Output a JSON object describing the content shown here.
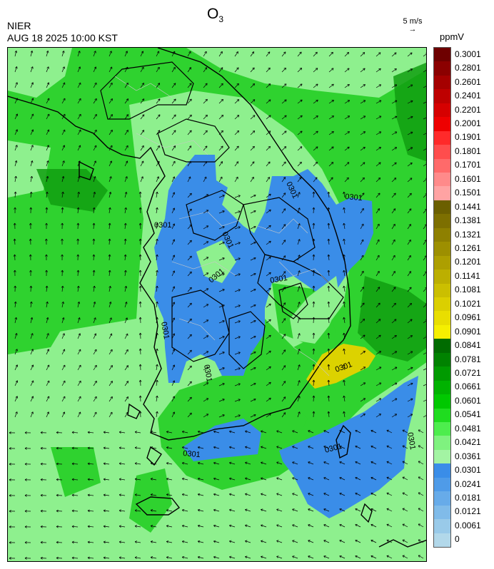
{
  "header": {
    "title_main": "O",
    "title_sub": "3",
    "agency": "NIER",
    "datetime": "AUG 18 2025 10:00 KST"
  },
  "wind_scale": {
    "label": "5 m/s",
    "arrow": "→"
  },
  "legend": {
    "unit": "ppmV",
    "levels": [
      {
        "label": "0.3001",
        "color": "#6e0000"
      },
      {
        "label": "0.2801",
        "color": "#8b0000"
      },
      {
        "label": "0.2601",
        "color": "#a50000"
      },
      {
        "label": "0.2401",
        "color": "#be0000"
      },
      {
        "label": "0.2201",
        "color": "#d60000"
      },
      {
        "label": "0.2001",
        "color": "#ee0000"
      },
      {
        "label": "0.1901",
        "color": "#ff2a2a"
      },
      {
        "label": "0.1801",
        "color": "#ff4d4d"
      },
      {
        "label": "0.1701",
        "color": "#ff6a6a"
      },
      {
        "label": "0.1601",
        "color": "#ff8a8a"
      },
      {
        "label": "0.1501",
        "color": "#ffa3a3"
      },
      {
        "label": "0.1441",
        "color": "#6b5f00"
      },
      {
        "label": "0.1381",
        "color": "#7d6f00"
      },
      {
        "label": "0.1321",
        "color": "#8e8000"
      },
      {
        "label": "0.1261",
        "color": "#9d8f00"
      },
      {
        "label": "0.1201",
        "color": "#ad9f00"
      },
      {
        "label": "0.1141",
        "color": "#bcaf00"
      },
      {
        "label": "0.1081",
        "color": "#cbbf00"
      },
      {
        "label": "0.1021",
        "color": "#dbcf00"
      },
      {
        "label": "0.0961",
        "color": "#e9de00"
      },
      {
        "label": "0.0901",
        "color": "#f5ef00"
      },
      {
        "label": "0.0841",
        "color": "#006b00"
      },
      {
        "label": "0.0781",
        "color": "#008200"
      },
      {
        "label": "0.0721",
        "color": "#009a00"
      },
      {
        "label": "0.0661",
        "color": "#00b200"
      },
      {
        "label": "0.0601",
        "color": "#00c800"
      },
      {
        "label": "0.0541",
        "color": "#1fdc1f"
      },
      {
        "label": "0.0481",
        "color": "#4ded4d"
      },
      {
        "label": "0.0421",
        "color": "#7ff27f"
      },
      {
        "label": "0.0361",
        "color": "#a3f4a3"
      },
      {
        "label": "0.0301",
        "color": "#3a8de8"
      },
      {
        "label": "0.0241",
        "color": "#4f9be8"
      },
      {
        "label": "0.0181",
        "color": "#67abe9"
      },
      {
        "label": "0.0121",
        "color": "#80bbe9"
      },
      {
        "label": "0.0061",
        "color": "#99cae9"
      },
      {
        "label": "0",
        "color": "#b2d8ea"
      }
    ]
  },
  "map": {
    "contour_labels": [
      "0301",
      "0301",
      "0301",
      "0301",
      "0301",
      "0301",
      "0301",
      "0301",
      "0301",
      "0301",
      "0301",
      "0301"
    ],
    "colors": {
      "bg_green": "#2fd22f",
      "light_green": "#8ef08e",
      "blue": "#3a8de8",
      "dark_green": "#0a9a0a",
      "yellow": "#dcd200",
      "coast": "#000000",
      "district": "#bfbfbf"
    }
  }
}
